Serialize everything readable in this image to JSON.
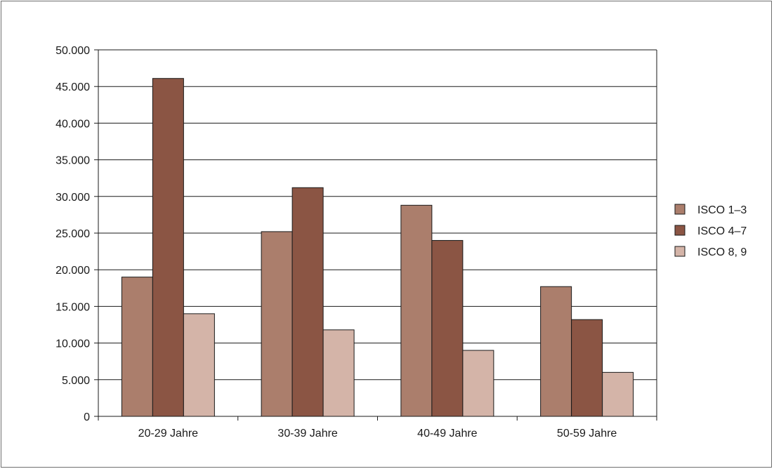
{
  "chart_data": {
    "type": "bar",
    "categories": [
      "20-29 Jahre",
      "30-39 Jahre",
      "40-49 Jahre",
      "50-59 Jahre"
    ],
    "series": [
      {
        "name": "ISCO 1–3",
        "color": "#ab7e6c",
        "values": [
          19000,
          25200,
          28800,
          17700
        ]
      },
      {
        "name": "ISCO 4–7",
        "color": "#8b5544",
        "values": [
          46100,
          31200,
          24000,
          13200
        ]
      },
      {
        "name": "ISCO 8, 9",
        "color": "#d4b4a8",
        "values": [
          14000,
          11800,
          9000,
          6000
        ]
      }
    ],
    "ylim": [
      0,
      50000
    ],
    "y_ticks": [
      0,
      5000,
      10000,
      15000,
      20000,
      25000,
      30000,
      35000,
      40000,
      45000,
      50000
    ],
    "y_tick_labels": [
      "0",
      "5.000",
      "10.000",
      "15.000",
      "20.000",
      "25.000",
      "30.000",
      "35.000",
      "40.000",
      "45.000",
      "50.000"
    ],
    "grid": true,
    "legend_position": "right",
    "title": "",
    "xlabel": "",
    "ylabel": ""
  }
}
